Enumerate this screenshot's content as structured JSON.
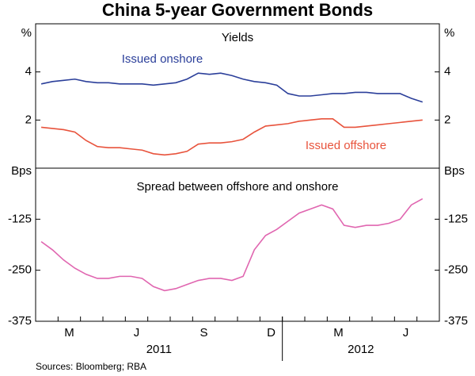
{
  "title": "China 5-year Government Bonds",
  "source": "Sources: Bloomberg; RBA",
  "chart_data": [
    {
      "type": "line",
      "subtitle": "Yields",
      "y_unit": "%",
      "ylim": [
        0,
        6
      ],
      "yticks": [
        2,
        4
      ],
      "series": [
        {
          "name": "Issued onshore",
          "color": "#2b3f9a",
          "values": [
            3.5,
            3.6,
            3.65,
            3.7,
            3.6,
            3.55,
            3.55,
            3.5,
            3.5,
            3.5,
            3.45,
            3.5,
            3.55,
            3.7,
            3.95,
            3.9,
            3.95,
            3.85,
            3.7,
            3.6,
            3.55,
            3.45,
            3.1,
            3.0,
            3.0,
            3.05,
            3.1,
            3.1,
            3.15,
            3.15,
            3.1,
            3.1,
            3.1,
            2.9,
            2.75,
            null
          ]
        },
        {
          "name": "Issued offshore",
          "color": "#e8533c",
          "values": [
            1.7,
            1.65,
            1.6,
            1.5,
            1.15,
            0.9,
            0.85,
            0.85,
            0.8,
            0.75,
            0.6,
            0.55,
            0.6,
            0.7,
            1.0,
            1.05,
            1.05,
            1.1,
            1.2,
            1.5,
            1.75,
            1.8,
            1.85,
            1.95,
            2.0,
            2.05,
            2.05,
            1.7,
            1.7,
            1.75,
            1.8,
            1.85,
            1.9,
            1.95,
            2.0,
            null
          ]
        }
      ]
    },
    {
      "type": "line",
      "subtitle": "Spread between offshore and onshore",
      "y_unit": "Bps",
      "ylim": [
        -375,
        0
      ],
      "yticks": [
        -375,
        -250,
        -125
      ],
      "categories": [
        null,
        null,
        "M",
        null,
        null,
        null,
        null,
        null,
        "J",
        null,
        null,
        null,
        null,
        null,
        "S",
        null,
        null,
        null,
        null,
        null,
        "D",
        null,
        null,
        null,
        null,
        null,
        "M",
        null,
        null,
        null,
        null,
        null,
        "J",
        null,
        null,
        null
      ],
      "year_labels": [
        "2011",
        "2012"
      ],
      "series": [
        {
          "color": "#e066b0",
          "values": [
            -180,
            -200,
            -225,
            -245,
            -260,
            -270,
            -270,
            -265,
            -265,
            -270,
            -290,
            -300,
            -295,
            -285,
            -275,
            -270,
            -270,
            -275,
            -265,
            -200,
            -165,
            -150,
            -130,
            -110,
            -100,
            -90,
            -100,
            -140,
            -145,
            -140,
            -140,
            -135,
            -125,
            -90,
            -75,
            null
          ]
        }
      ]
    }
  ]
}
